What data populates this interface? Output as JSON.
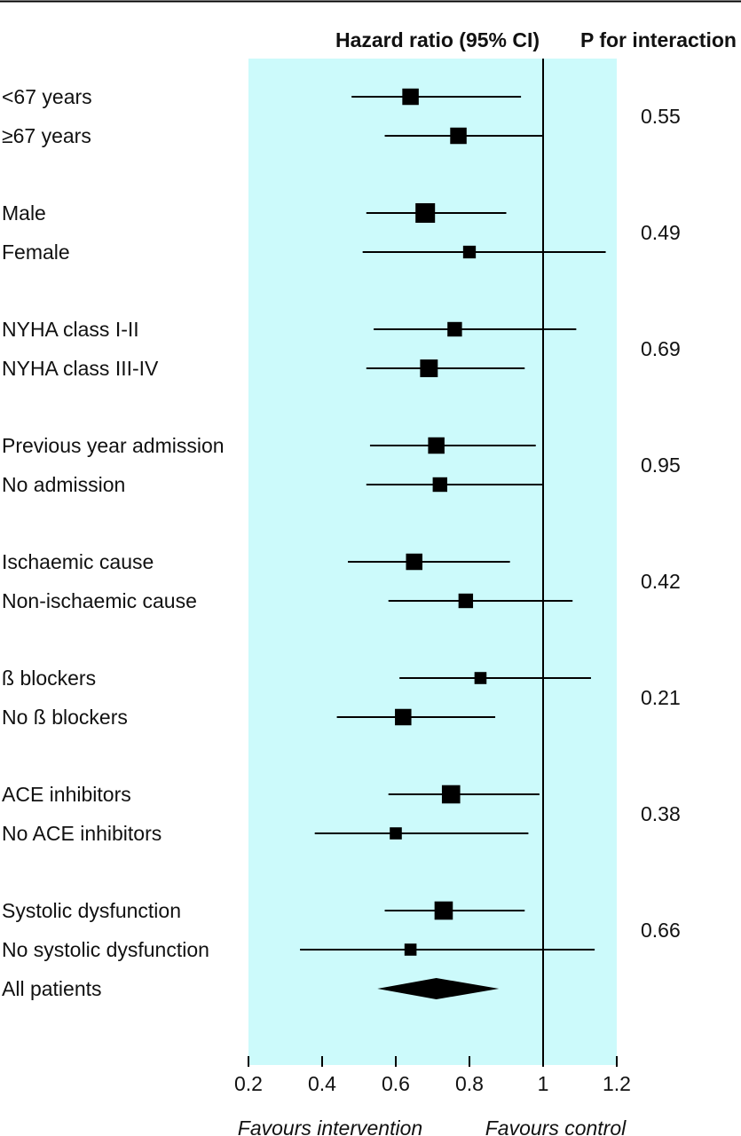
{
  "chart_data": {
    "type": "forest",
    "headers": {
      "estimate": "Hazard ratio (95% CI)",
      "p_interaction": "P for interaction"
    },
    "x_axis": {
      "min": 0.2,
      "max": 1.2,
      "ticks": [
        0.2,
        0.4,
        0.6,
        0.8,
        1,
        1.2
      ],
      "tick_labels": [
        "0.2",
        "0.4",
        "0.6",
        "0.8",
        "1",
        "1.2"
      ],
      "reference_line": 1
    },
    "favours": {
      "left": "Favours intervention",
      "right": "Favours control"
    },
    "colors": {
      "panel": "#ccfafb",
      "marks": "#000000"
    },
    "groups": [
      {
        "p": "0.55",
        "rows": [
          {
            "label": "<67 years",
            "hr": 0.64,
            "lo": 0.48,
            "hi": 0.94,
            "weight": 0.75
          },
          {
            "label": "≥67 years",
            "hr": 0.77,
            "lo": 0.57,
            "hi": 1.0,
            "weight": 0.75
          }
        ]
      },
      {
        "p": "0.49",
        "rows": [
          {
            "label": "Male",
            "hr": 0.68,
            "lo": 0.52,
            "hi": 0.9,
            "weight": 1.0
          },
          {
            "label": "Female",
            "hr": 0.8,
            "lo": 0.51,
            "hi": 1.17,
            "weight": 0.45
          }
        ]
      },
      {
        "p": "0.69",
        "rows": [
          {
            "label": "NYHA class I-II",
            "hr": 0.76,
            "lo": 0.54,
            "hi": 1.09,
            "weight": 0.6
          },
          {
            "label": "NYHA class III-IV",
            "hr": 0.69,
            "lo": 0.52,
            "hi": 0.95,
            "weight": 0.85
          }
        ]
      },
      {
        "p": "0.95",
        "rows": [
          {
            "label": "Previous year admission",
            "hr": 0.71,
            "lo": 0.53,
            "hi": 0.98,
            "weight": 0.75
          },
          {
            "label": "No admission",
            "hr": 0.72,
            "lo": 0.52,
            "hi": 1.0,
            "weight": 0.6
          }
        ]
      },
      {
        "p": "0.42",
        "rows": [
          {
            "label": "Ischaemic cause",
            "hr": 0.65,
            "lo": 0.47,
            "hi": 0.91,
            "weight": 0.75
          },
          {
            "label": "Non-ischaemic cause",
            "hr": 0.79,
            "lo": 0.58,
            "hi": 1.08,
            "weight": 0.6
          }
        ]
      },
      {
        "p": "0.21",
        "rows": [
          {
            "label": "ß blockers",
            "hr": 0.83,
            "lo": 0.61,
            "hi": 1.13,
            "weight": 0.4
          },
          {
            "label": "No ß blockers",
            "hr": 0.62,
            "lo": 0.44,
            "hi": 0.87,
            "weight": 0.75
          }
        ]
      },
      {
        "p": "0.38",
        "rows": [
          {
            "label": "ACE inhibitors",
            "hr": 0.75,
            "lo": 0.58,
            "hi": 0.99,
            "weight": 0.9
          },
          {
            "label": "No ACE inhibitors",
            "hr": 0.6,
            "lo": 0.38,
            "hi": 0.96,
            "weight": 0.4
          }
        ]
      },
      {
        "p": "0.66",
        "rows": [
          {
            "label": "Systolic dysfunction",
            "hr": 0.73,
            "lo": 0.57,
            "hi": 0.95,
            "weight": 0.9
          },
          {
            "label": "No systolic dysfunction",
            "hr": 0.64,
            "lo": 0.34,
            "hi": 1.14,
            "weight": 0.4
          }
        ]
      }
    ],
    "overall": {
      "label": "All patients",
      "hr": 0.71,
      "lo": 0.55,
      "hi": 0.88
    }
  }
}
